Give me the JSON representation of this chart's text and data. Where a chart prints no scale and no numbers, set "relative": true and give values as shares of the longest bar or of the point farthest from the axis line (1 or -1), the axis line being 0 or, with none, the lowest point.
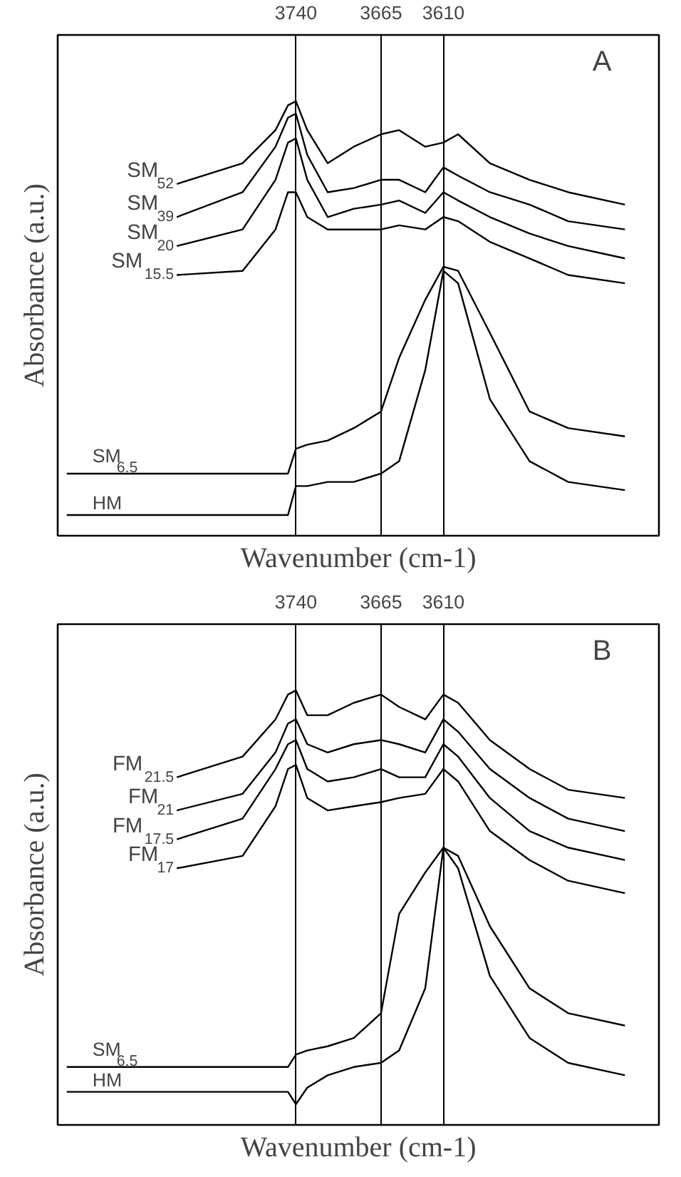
{
  "chart_data": [
    {
      "type": "line",
      "relative": true,
      "xlim": [
        3950,
        3420
      ],
      "xticks": [
        3740,
        3665,
        3610
      ],
      "tick_labels": "x",
      "grid": "x",
      "line_style": "solid",
      "xlabel": "Wavenumber (cm-1)",
      "ylabel": "Absorbance (a.u.)",
      "annotations": [
        "A"
      ],
      "x": [
        3942,
        3845,
        3787,
        3758,
        3747,
        3740,
        3730,
        3712,
        3689,
        3665,
        3649,
        3626,
        3610,
        3597,
        3569,
        3534,
        3500,
        3450
      ],
      "series": [
        {
          "name": "SM$_{52}$",
          "color": "#000000",
          "values": [
            null,
            0.8,
            0.85,
            0.93,
            0.99,
            1.0,
            0.93,
            0.85,
            0.89,
            0.92,
            0.93,
            0.89,
            0.9,
            0.92,
            0.85,
            0.81,
            0.78,
            0.75
          ]
        },
        {
          "name": "SM$_{39}$",
          "color": "#000000",
          "values": [
            null,
            0.72,
            0.78,
            0.89,
            0.96,
            0.97,
            0.87,
            0.78,
            0.79,
            0.81,
            0.81,
            0.78,
            0.84,
            0.82,
            0.78,
            0.75,
            0.71,
            0.69
          ]
        },
        {
          "name": "SM$_{20}$",
          "color": "#000000",
          "values": [
            null,
            0.65,
            0.69,
            0.81,
            0.9,
            0.91,
            0.81,
            0.72,
            0.74,
            0.75,
            0.76,
            0.73,
            0.78,
            0.76,
            0.72,
            0.68,
            0.65,
            0.62
          ]
        },
        {
          "name": "SM$_{15.5}$",
          "color": "#000000",
          "values": [
            null,
            0.58,
            0.59,
            0.69,
            0.78,
            0.78,
            0.72,
            0.69,
            0.69,
            0.69,
            0.7,
            0.69,
            0.72,
            0.71,
            0.66,
            0.62,
            0.58,
            0.56
          ]
        },
        {
          "name": "SM$_{6.5}$",
          "color": "#000000",
          "values": [
            0.1,
            null,
            null,
            null,
            0.1,
            0.16,
            0.17,
            0.18,
            0.21,
            0.25,
            0.38,
            0.52,
            0.6,
            0.59,
            0.44,
            0.25,
            0.21,
            0.19
          ]
        },
        {
          "name": "HM",
          "color": "#000000",
          "values": [
            0.0,
            null,
            null,
            null,
            0.0,
            0.07,
            0.07,
            0.08,
            0.08,
            0.1,
            0.13,
            0.35,
            0.59,
            0.56,
            0.28,
            0.13,
            0.08,
            0.06
          ]
        }
      ]
    },
    {
      "type": "line",
      "relative": true,
      "xlim": [
        3950,
        3420
      ],
      "xticks": [
        3740,
        3665,
        3610
      ],
      "tick_labels": "x",
      "grid": "x",
      "line_style": "solid",
      "xlabel": "Wavenumber (cm-1)",
      "ylabel": "Absorbance (a.u.)",
      "annotations": [
        "B"
      ],
      "x": [
        3942,
        3845,
        3787,
        3758,
        3747,
        3740,
        3730,
        3712,
        3689,
        3665,
        3649,
        3626,
        3610,
        3597,
        3569,
        3534,
        3500,
        3450
      ],
      "series": [
        {
          "name": "FM$_{21.5}$",
          "color": "#000000",
          "values": [
            null,
            0.79,
            0.84,
            0.93,
            0.99,
            1.0,
            0.94,
            0.94,
            0.97,
            0.99,
            0.96,
            0.93,
            0.99,
            0.97,
            0.88,
            0.81,
            0.76,
            0.74
          ]
        },
        {
          "name": "FM$_{21}$",
          "color": "#000000",
          "values": [
            null,
            0.71,
            0.75,
            0.85,
            0.92,
            0.93,
            0.87,
            0.85,
            0.87,
            0.88,
            0.87,
            0.85,
            0.93,
            0.9,
            0.81,
            0.74,
            0.69,
            0.66
          ]
        },
        {
          "name": "FM$_{17.5}$",
          "color": "#000000",
          "values": [
            null,
            0.64,
            0.69,
            0.81,
            0.87,
            0.88,
            0.81,
            0.78,
            0.79,
            0.81,
            0.79,
            0.79,
            0.87,
            0.84,
            0.74,
            0.66,
            0.62,
            0.59
          ]
        },
        {
          "name": "FM$_{17}$",
          "color": "#000000",
          "values": [
            null,
            0.57,
            0.6,
            0.72,
            0.81,
            0.82,
            0.74,
            0.71,
            0.72,
            0.73,
            0.74,
            0.75,
            0.81,
            0.78,
            0.66,
            0.59,
            0.54,
            0.51
          ]
        },
        {
          "name": "SM$_{6.5}$",
          "color": "#000000",
          "values": [
            0.09,
            null,
            null,
            null,
            0.09,
            0.12,
            0.13,
            0.14,
            0.16,
            0.22,
            0.46,
            0.56,
            0.62,
            0.6,
            0.43,
            0.28,
            0.22,
            0.19
          ]
        },
        {
          "name": "HM",
          "color": "#000000",
          "values": [
            0.03,
            null,
            null,
            null,
            0.03,
            0.0,
            0.04,
            0.07,
            0.09,
            0.1,
            0.13,
            0.28,
            0.62,
            0.57,
            0.31,
            0.16,
            0.1,
            0.07
          ]
        }
      ]
    }
  ]
}
